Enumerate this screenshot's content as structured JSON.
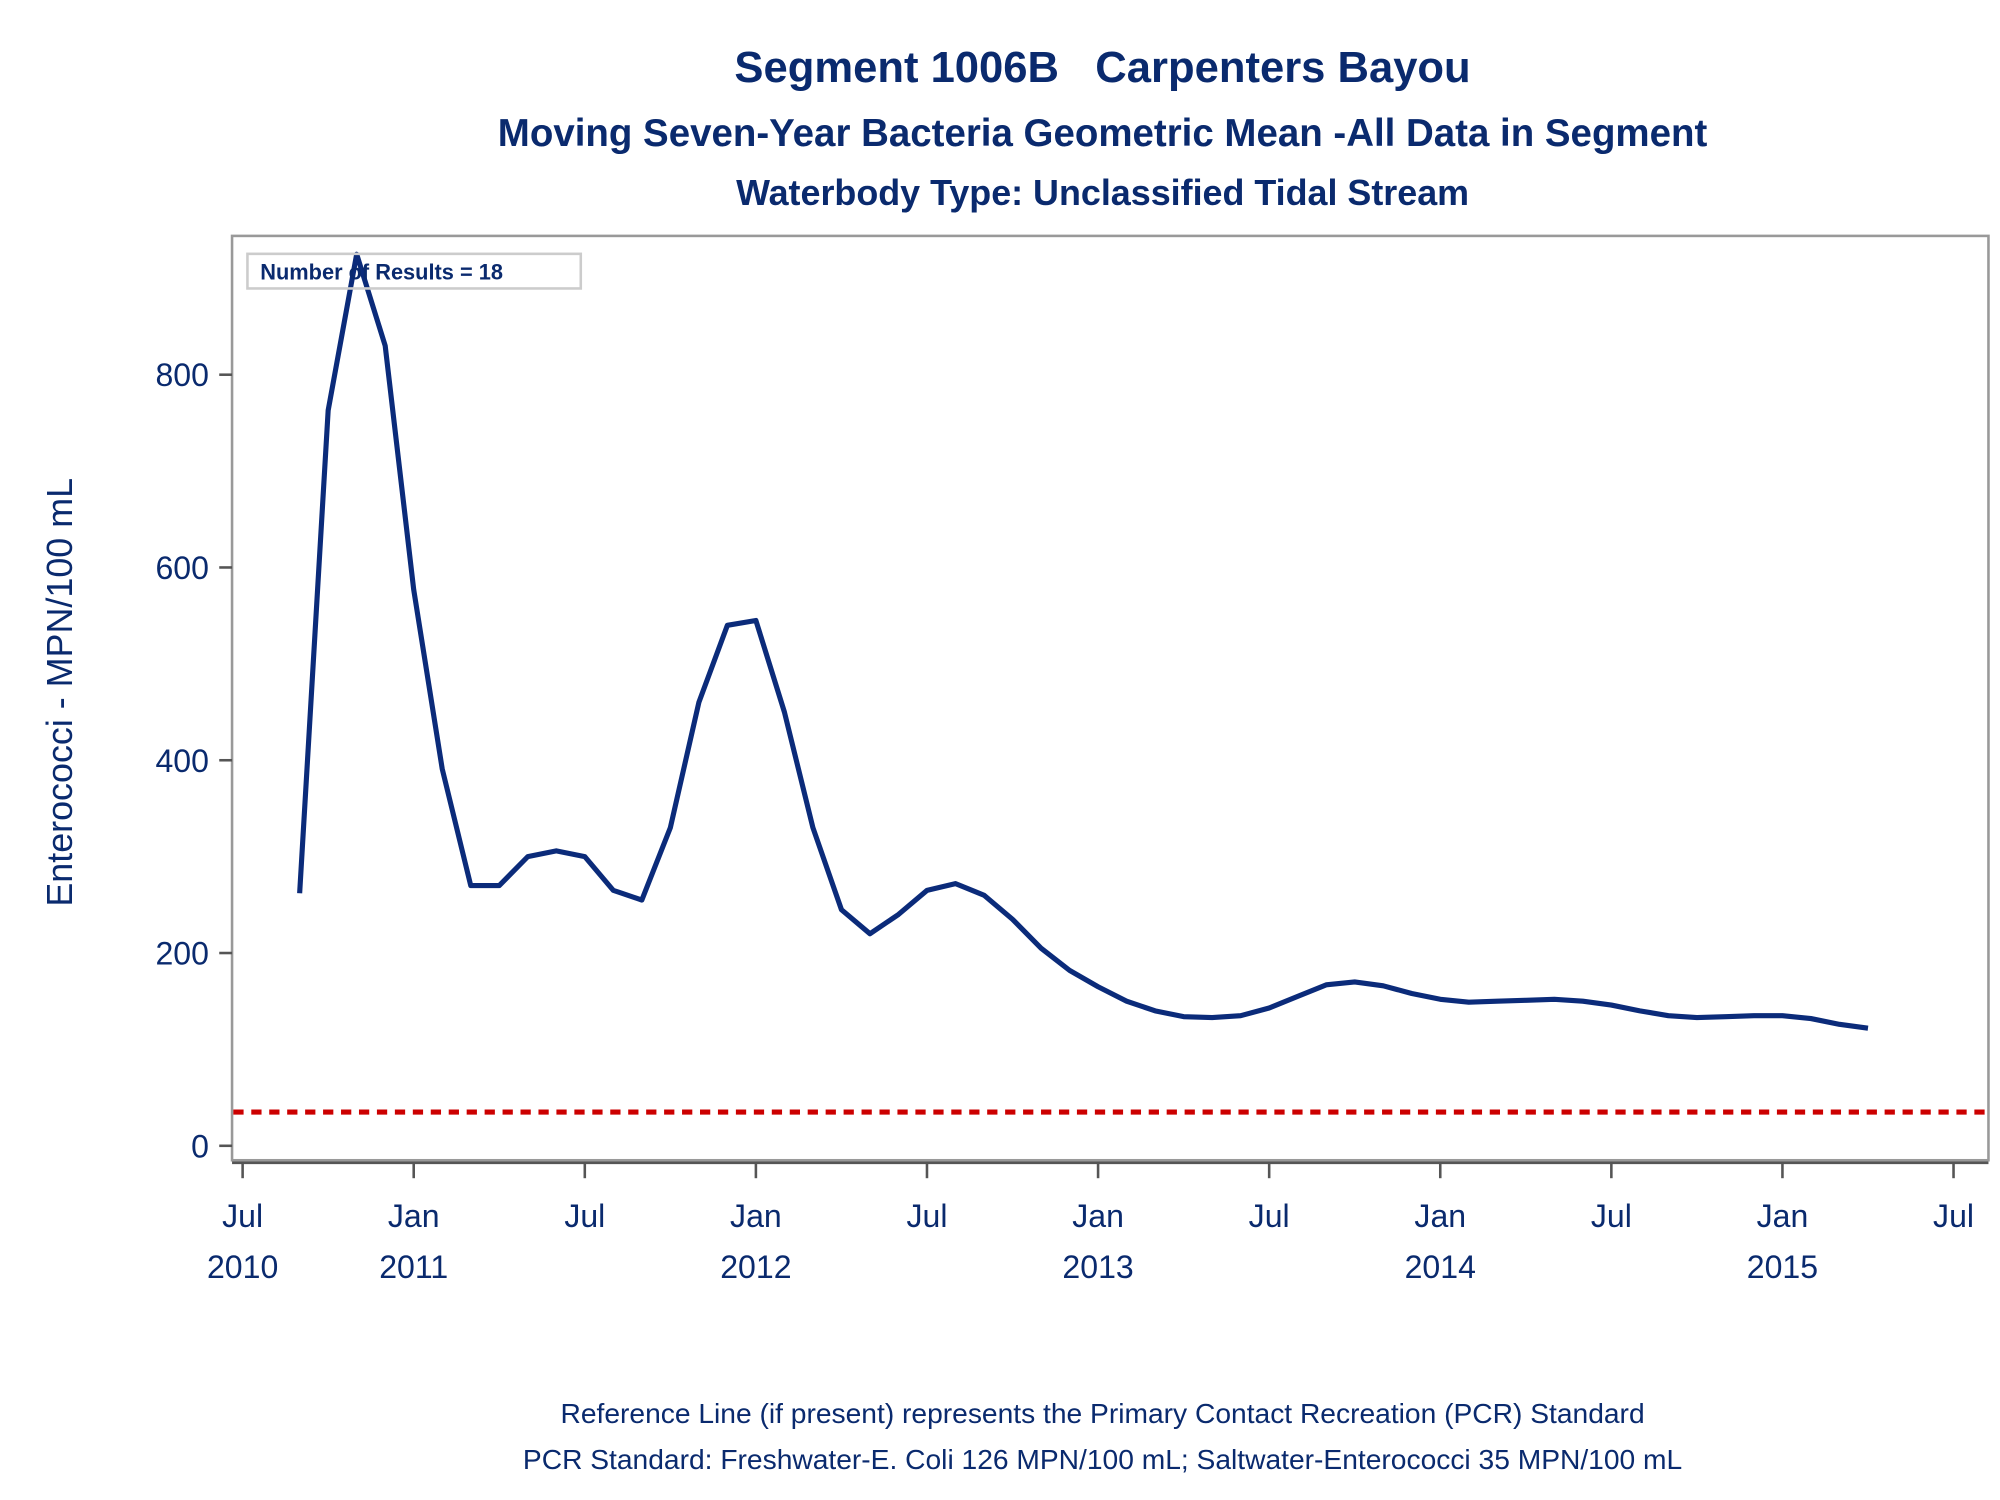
{
  "chart_data": {
    "type": "line",
    "title": "Segment 1006B   Carpenters Bayou",
    "subtitle": "Moving Seven-Year Bacteria Geometric Mean -All Data in Segment",
    "subtitle2": "Waterbody Type: Unclassified Tidal Stream",
    "y_label": "Enterococci - MPN/100 mL",
    "annotation": "Number of Results = 18",
    "footnotes": [
      "Reference Line (if present) represents the Primary Contact Recreation (PCR) Standard",
      "PCR Standard: Freshwater-E. Coli 126 MPN/100 mL; Saltwater-Enterococci 35 MPN/100 mL"
    ],
    "x": [
      "2010-09",
      "2010-10",
      "2010-11",
      "2010-12",
      "2011-01",
      "2011-02",
      "2011-03",
      "2011-04",
      "2011-05",
      "2011-06",
      "2011-07",
      "2011-08",
      "2011-09",
      "2011-10",
      "2011-11",
      "2011-12",
      "2012-01",
      "2012-02",
      "2012-03",
      "2012-04",
      "2012-05",
      "2012-06",
      "2012-07",
      "2012-08",
      "2012-09",
      "2012-10",
      "2012-11",
      "2012-12",
      "2013-01",
      "2013-02",
      "2013-03",
      "2013-04",
      "2013-05",
      "2013-06",
      "2013-07",
      "2013-08",
      "2013-09",
      "2013-10",
      "2013-11",
      "2013-12",
      "2014-01",
      "2014-02",
      "2014-03",
      "2014-04",
      "2014-05",
      "2014-06",
      "2014-07",
      "2014-08",
      "2014-09",
      "2014-10",
      "2014-11",
      "2014-12",
      "2015-01",
      "2015-02",
      "2015-03",
      "2015-04"
    ],
    "series": [
      {
        "color": "#0b2b7a",
        "values": [
          262,
          763,
          925,
          830,
          577,
          391,
          270,
          270,
          300,
          306,
          300,
          265,
          255,
          330,
          460,
          540,
          545,
          450,
          330,
          245,
          220,
          240,
          265,
          272,
          260,
          235,
          205,
          182,
          165,
          150,
          140,
          134,
          133,
          135,
          143,
          155,
          167,
          170,
          166,
          158,
          152,
          149,
          150,
          151,
          152,
          150,
          146,
          140,
          135,
          133,
          134,
          135,
          135,
          132,
          126,
          122
        ]
      }
    ],
    "reference_line": {
      "value": 35,
      "color": "#cc0000"
    },
    "xlim": [
      "2010-06",
      "2015-08"
    ],
    "xticks": [
      {
        "value": "2010-07",
        "label": "Jul 2010"
      },
      {
        "value": "2011-01",
        "label": "Jan 2011"
      },
      {
        "value": "2011-07",
        "label": "Jul"
      },
      {
        "value": "2012-01",
        "label": "Jan 2012"
      },
      {
        "value": "2012-07",
        "label": "Jul"
      },
      {
        "value": "2013-01",
        "label": "Jan 2013"
      },
      {
        "value": "2013-07",
        "label": "Jul"
      },
      {
        "value": "2014-01",
        "label": "Jan 2014"
      },
      {
        "value": "2014-07",
        "label": "Jul"
      },
      {
        "value": "2015-01",
        "label": "Jan 2015"
      },
      {
        "value": "2015-07",
        "label": "Jul"
      }
    ],
    "ylim": [
      -15,
      944
    ],
    "yticks": [
      0,
      200,
      400,
      600,
      800
    ]
  }
}
